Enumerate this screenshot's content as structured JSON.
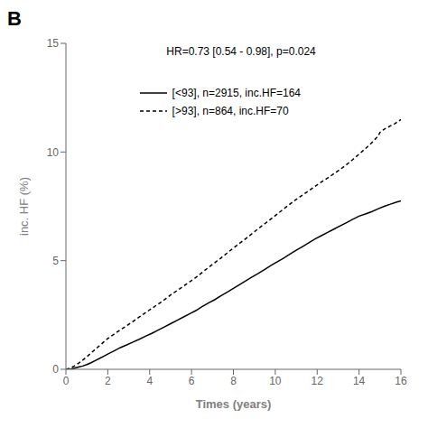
{
  "chart_data": {
    "type": "line",
    "title": "B",
    "x_label": "Times (years)",
    "y_label": "inc. HF (%)",
    "annotation": "HR=0.73 [0.54 - 0.98], p=0.024",
    "xlim": [
      0,
      16
    ],
    "ylim": [
      0,
      15
    ],
    "xticks": [
      0,
      2,
      4,
      6,
      8,
      10,
      12,
      14,
      16
    ],
    "yticks": [
      0,
      5,
      10,
      15
    ],
    "grid": false,
    "legend": "upper left",
    "series": [
      {
        "name": "[<93], n=2915, inc.HF=164",
        "color": "#000000",
        "line_style": "solid",
        "x": [
          0,
          0.2,
          0.4,
          0.6,
          0.8,
          1.0,
          1.2,
          1.4,
          1.6,
          1.8,
          2.0,
          2.3,
          2.6,
          2.9,
          3.2,
          3.5,
          3.8,
          4.1,
          4.4,
          4.7,
          5.0,
          5.3,
          5.6,
          5.9,
          6.2,
          6.5,
          6.8,
          7.1,
          7.4,
          7.7,
          8.0,
          8.3,
          8.6,
          8.9,
          9.2,
          9.5,
          9.8,
          10.1,
          10.4,
          10.7,
          11.0,
          11.3,
          11.6,
          11.9,
          12.2,
          12.5,
          12.8,
          13.1,
          13.4,
          13.7,
          14.0,
          14.3,
          14.6,
          14.9,
          15.2,
          15.5,
          15.8,
          16.0
        ],
        "values": [
          0,
          0.0,
          0.05,
          0.1,
          0.15,
          0.22,
          0.3,
          0.4,
          0.5,
          0.6,
          0.7,
          0.85,
          1.0,
          1.12,
          1.25,
          1.38,
          1.52,
          1.65,
          1.8,
          1.95,
          2.1,
          2.25,
          2.4,
          2.55,
          2.7,
          2.88,
          3.05,
          3.2,
          3.38,
          3.55,
          3.72,
          3.9,
          4.08,
          4.25,
          4.42,
          4.6,
          4.78,
          4.95,
          5.12,
          5.3,
          5.48,
          5.65,
          5.82,
          6.0,
          6.15,
          6.3,
          6.45,
          6.6,
          6.75,
          6.9,
          7.05,
          7.15,
          7.25,
          7.38,
          7.5,
          7.6,
          7.7,
          7.75
        ]
      },
      {
        "name": "[>93], n=864, inc.HF=70",
        "color": "#000000",
        "line_style": "dashed",
        "x": [
          0,
          0.2,
          0.4,
          0.6,
          0.8,
          1.0,
          1.2,
          1.4,
          1.6,
          1.8,
          2.0,
          2.3,
          2.6,
          2.9,
          3.2,
          3.5,
          3.8,
          4.1,
          4.4,
          4.7,
          5.0,
          5.3,
          5.6,
          5.9,
          6.2,
          6.5,
          6.8,
          7.1,
          7.4,
          7.7,
          8.0,
          8.3,
          8.6,
          8.9,
          9.2,
          9.5,
          9.8,
          10.1,
          10.4,
          10.7,
          11.0,
          11.3,
          11.6,
          11.9,
          12.2,
          12.5,
          12.8,
          13.1,
          13.4,
          13.7,
          14.0,
          14.3,
          14.6,
          14.9,
          15.0,
          15.2,
          15.5,
          15.7,
          15.9,
          16.0
        ],
        "values": [
          0,
          0.05,
          0.15,
          0.28,
          0.42,
          0.58,
          0.75,
          0.92,
          1.08,
          1.25,
          1.42,
          1.62,
          1.82,
          2.0,
          2.2,
          2.4,
          2.6,
          2.8,
          3.0,
          3.2,
          3.42,
          3.62,
          3.82,
          4.02,
          4.22,
          4.45,
          4.68,
          4.9,
          5.12,
          5.35,
          5.58,
          5.8,
          6.02,
          6.25,
          6.48,
          6.7,
          6.92,
          7.15,
          7.38,
          7.6,
          7.82,
          8.02,
          8.22,
          8.42,
          8.62,
          8.8,
          9.0,
          9.2,
          9.42,
          9.65,
          9.9,
          10.15,
          10.42,
          10.72,
          10.9,
          11.05,
          11.2,
          11.3,
          11.42,
          11.5
        ]
      }
    ]
  }
}
